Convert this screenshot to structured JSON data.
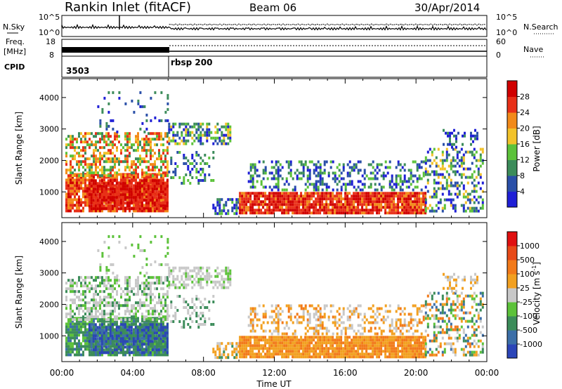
{
  "header": {
    "station_title": "Rankin Inlet (fitACF)",
    "beam": "Beam 06",
    "date": "30/Apr/2014"
  },
  "status_panels": {
    "left_sky": "N.Sky",
    "right_search": "N.Search",
    "freq_label_line1": "Freq.",
    "freq_label_line2": "[MHz]",
    "right_nave": "Nave",
    "cpid_label": "CPID",
    "noise_ticks_left": [
      "10^5",
      "10^0"
    ],
    "noise_ticks_right": [
      "10^5",
      "10^0"
    ],
    "freq_ticks": [
      "18",
      "8"
    ],
    "nave_ticks": [
      "60",
      "0"
    ],
    "cpid_segments": [
      "3503",
      "rbsp 200"
    ]
  },
  "chart_data": [
    {
      "type": "heatmap",
      "name": "power-panel",
      "ylabel": "Slant Range [km]",
      "xlabel": "",
      "ylim": [
        180,
        4600
      ],
      "yticks": [
        1000,
        2000,
        3000,
        4000
      ],
      "xticks": [
        "00:00",
        "04:00",
        "08:00",
        "12:00",
        "16:00",
        "20:00",
        "00:00"
      ],
      "colorbar": {
        "label": "Power [dB]",
        "ticks": [
          "4",
          "8",
          "12",
          "16",
          "20",
          "24",
          "28"
        ],
        "colors": [
          "#1f1fd6",
          "#2a4fa8",
          "#3c8c5a",
          "#5cc23a",
          "#f2c22a",
          "#f28a1a",
          "#e83018",
          "#d00000"
        ]
      }
    },
    {
      "type": "heatmap",
      "name": "velocity-panel",
      "ylabel": "Slant Range [km]",
      "xlabel": "Time UT",
      "ylim": [
        180,
        4600
      ],
      "yticks": [
        1000,
        2000,
        3000,
        4000
      ],
      "xticks": [
        "00:00",
        "04:00",
        "08:00",
        "12:00",
        "16:00",
        "20:00",
        "00:00"
      ],
      "colorbar": {
        "label": "Velocity [m s",
        "label_superscript": "-1",
        "label_close": "]",
        "ticks": [
          "1000",
          "500",
          "100",
          "25",
          "-25",
          "-100",
          "-500",
          "-1000"
        ],
        "colors": [
          "#2b45b8",
          "#3c6fa8",
          "#3c8c5a",
          "#5cc23a",
          "#c8c8c8",
          "#f2a020",
          "#f27a1a",
          "#e84a18",
          "#e01010"
        ]
      }
    }
  ]
}
